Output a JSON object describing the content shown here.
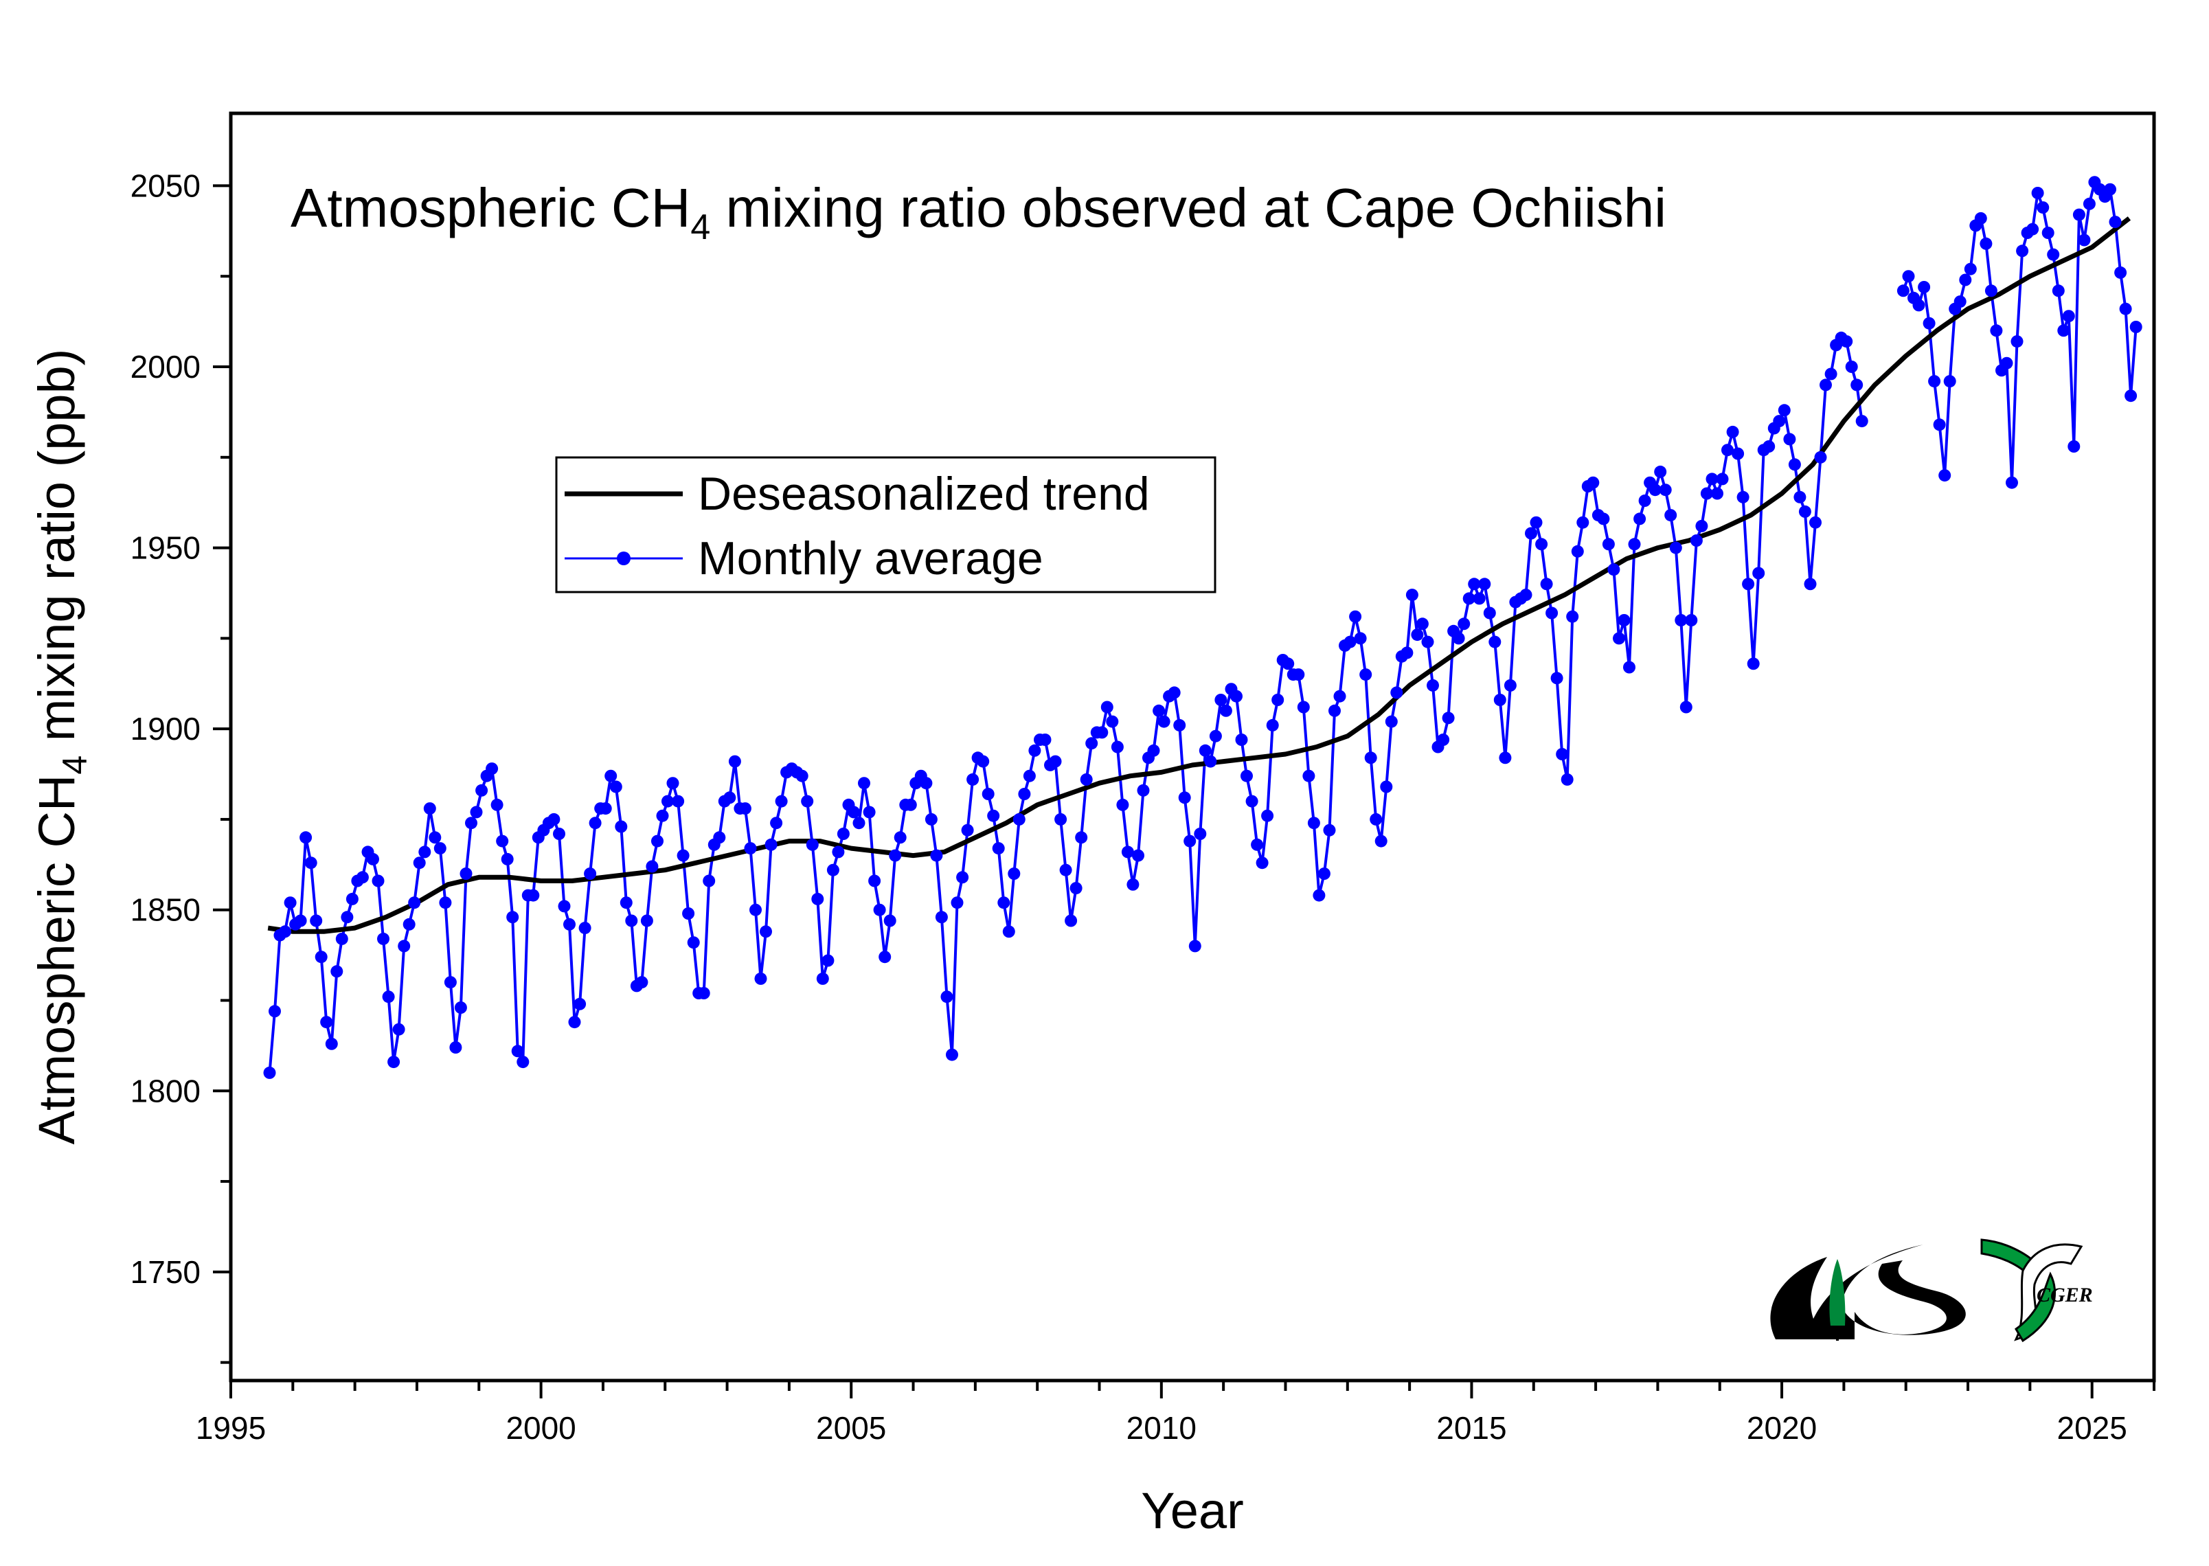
{
  "chart_data": {
    "type": "line",
    "title_parts": [
      "Atmospheric CH",
      "4",
      " mixing ratio observed at Cape Ochiishi"
    ],
    "xlabel": "Year",
    "ylabel_parts": [
      "Atmospheric CH",
      "4",
      " mixing ratio  (ppb)"
    ],
    "xlim": [
      1995,
      2026
    ],
    "ylim": [
      1720,
      2070
    ],
    "xticks": [
      1995,
      2000,
      2005,
      2010,
      2015,
      2020,
      2025
    ],
    "xticks_minor_step": 1,
    "yticks": [
      1750,
      1800,
      1850,
      1900,
      1950,
      2000,
      2050
    ],
    "yticks_minor_step": 25,
    "grid": false,
    "legend_placement": "upper-left-center",
    "colors": {
      "trend": "#000000",
      "monthly": "#0000ff"
    },
    "series": [
      {
        "name": "Deseasonalized trend",
        "style": "line",
        "points": [
          [
            1995.6,
            1845
          ],
          [
            1996.0,
            1844
          ],
          [
            1996.5,
            1844
          ],
          [
            1997.0,
            1845
          ],
          [
            1997.5,
            1848
          ],
          [
            1998.0,
            1852
          ],
          [
            1998.5,
            1857
          ],
          [
            1999.0,
            1859
          ],
          [
            1999.5,
            1859
          ],
          [
            2000.0,
            1858
          ],
          [
            2000.5,
            1858
          ],
          [
            2001.0,
            1859
          ],
          [
            2001.5,
            1860
          ],
          [
            2002.0,
            1861
          ],
          [
            2002.5,
            1863
          ],
          [
            2003.0,
            1865
          ],
          [
            2003.5,
            1867
          ],
          [
            2004.0,
            1869
          ],
          [
            2004.5,
            1869
          ],
          [
            2005.0,
            1867
          ],
          [
            2005.5,
            1866
          ],
          [
            2006.0,
            1865
          ],
          [
            2006.5,
            1866
          ],
          [
            2007.0,
            1870
          ],
          [
            2007.5,
            1874
          ],
          [
            2008.0,
            1879
          ],
          [
            2008.5,
            1882
          ],
          [
            2009.0,
            1885
          ],
          [
            2009.5,
            1887
          ],
          [
            2010.0,
            1888
          ],
          [
            2010.5,
            1890
          ],
          [
            2011.0,
            1891
          ],
          [
            2011.5,
            1892
          ],
          [
            2012.0,
            1893
          ],
          [
            2012.5,
            1895
          ],
          [
            2013.0,
            1898
          ],
          [
            2013.5,
            1904
          ],
          [
            2014.0,
            1912
          ],
          [
            2014.5,
            1918
          ],
          [
            2015.0,
            1924
          ],
          [
            2015.5,
            1929
          ],
          [
            2016.0,
            1933
          ],
          [
            2016.5,
            1937
          ],
          [
            2017.0,
            1942
          ],
          [
            2017.5,
            1947
          ],
          [
            2018.0,
            1950
          ],
          [
            2018.5,
            1952
          ],
          [
            2019.0,
            1955
          ],
          [
            2019.5,
            1959
          ],
          [
            2020.0,
            1965
          ],
          [
            2020.5,
            1973
          ],
          [
            2021.0,
            1985
          ],
          [
            2021.5,
            1995
          ],
          [
            2022.0,
            2003
          ],
          [
            2022.5,
            2010
          ],
          [
            2023.0,
            2016
          ],
          [
            2023.5,
            2020
          ],
          [
            2024.0,
            2025
          ],
          [
            2024.5,
            2029
          ],
          [
            2025.0,
            2033
          ],
          [
            2025.6,
            2041
          ]
        ]
      },
      {
        "name": "Monthly average",
        "style": "line+marker",
        "monthly": [
          {
            "year": 1995,
            "values": [
              null,
              null,
              null,
              null,
              null,
              null,
              null,
              1805,
              1822,
              1843,
              1844,
              1852
            ]
          },
          {
            "year": 1996,
            "values": [
              1846,
              1847,
              1870,
              1863,
              1847,
              1837,
              1819,
              1813,
              1833,
              1842,
              1848,
              1853
            ]
          },
          {
            "year": 1997,
            "values": [
              1858,
              1859,
              1866,
              1864,
              1858,
              1842,
              1826,
              1808,
              1817,
              1840,
              1846,
              1852
            ]
          },
          {
            "year": 1998,
            "values": [
              1863,
              1866,
              1878,
              1870,
              1867,
              1852,
              1830,
              1812,
              1823,
              1860,
              1874,
              1877
            ]
          },
          {
            "year": 1999,
            "values": [
              1883,
              1887,
              1889,
              1879,
              1869,
              1864,
              1848,
              1811,
              1808,
              1854,
              1854,
              1870
            ]
          },
          {
            "year": 2000,
            "values": [
              1872,
              1874,
              1875,
              1871,
              1851,
              1846,
              1819,
              1824,
              1845,
              1860,
              1874,
              1878
            ]
          },
          {
            "year": 2001,
            "values": [
              1878,
              1887,
              1884,
              1873,
              1852,
              1847,
              1829,
              1830,
              1847,
              1862,
              1869,
              1876
            ]
          },
          {
            "year": 2002,
            "values": [
              1880,
              1885,
              1880,
              1865,
              1849,
              1841,
              1827,
              1827,
              1858,
              1868,
              1870,
              1880
            ]
          },
          {
            "year": 2003,
            "values": [
              1881,
              1891,
              1878,
              1878,
              1867,
              1850,
              1831,
              1844,
              1868,
              1874,
              1880,
              1888
            ]
          },
          {
            "year": 2004,
            "values": [
              1889,
              1888,
              1887,
              1880,
              1868,
              1853,
              1831,
              1836,
              1861,
              1866,
              1871,
              1879
            ]
          },
          {
            "year": 2005,
            "values": [
              1877,
              1874,
              1885,
              1877,
              1858,
              1850,
              1837,
              1847,
              1865,
              1870,
              1879,
              1879
            ]
          },
          {
            "year": 2006,
            "values": [
              1885,
              1887,
              1885,
              1875,
              1865,
              1848,
              1826,
              1810,
              1852,
              1859,
              1872,
              1886
            ]
          },
          {
            "year": 2007,
            "values": [
              1892,
              1891,
              1882,
              1876,
              1867,
              1852,
              1844,
              1860,
              1875,
              1882,
              1887,
              1894
            ]
          },
          {
            "year": 2008,
            "values": [
              1897,
              1897,
              1890,
              1891,
              1875,
              1861,
              1847,
              1856,
              1870,
              1886,
              1896,
              1899
            ]
          },
          {
            "year": 2009,
            "values": [
              1899,
              1906,
              1902,
              1895,
              1879,
              1866,
              1857,
              1865,
              1883,
              1892,
              1894,
              1905
            ]
          },
          {
            "year": 2010,
            "values": [
              1902,
              1909,
              1910,
              1901,
              1881,
              1869,
              1840,
              1871,
              1894,
              1891,
              1898,
              1908
            ]
          },
          {
            "year": 2011,
            "values": [
              1905,
              1911,
              1909,
              1897,
              1887,
              1880,
              1868,
              1863,
              1876,
              1901,
              1908,
              1919
            ]
          },
          {
            "year": 2012,
            "values": [
              1918,
              1915,
              1915,
              1906,
              1887,
              1874,
              1854,
              1860,
              1872,
              1905,
              1909,
              1923
            ]
          },
          {
            "year": 2013,
            "values": [
              1924,
              1931,
              1925,
              1915,
              1892,
              1875,
              1869,
              1884,
              1902,
              1910,
              1920,
              1921
            ]
          },
          {
            "year": 2014,
            "values": [
              1937,
              1926,
              1929,
              1924,
              1912,
              1895,
              1897,
              1903,
              1927,
              1925,
              1929,
              1936
            ]
          },
          {
            "year": 2015,
            "values": [
              1940,
              1936,
              1940,
              1932,
              1924,
              1908,
              1892,
              1912,
              1935,
              1936,
              1937,
              1954
            ]
          },
          {
            "year": 2016,
            "values": [
              1957,
              1951,
              1940,
              1932,
              1914,
              1893,
              1886,
              1931,
              1949,
              1957,
              1967,
              1968
            ]
          },
          {
            "year": 2017,
            "values": [
              1959,
              1958,
              1951,
              1944,
              1925,
              1930,
              1917,
              1951,
              1958,
              1963,
              1968,
              1966
            ]
          },
          {
            "year": 2018,
            "values": [
              1971,
              1966,
              1959,
              1950,
              1930,
              1906,
              1930,
              1952,
              1956,
              1965,
              1969,
              1965
            ]
          },
          {
            "year": 2019,
            "values": [
              1969,
              1977,
              1982,
              1976,
              1964,
              1940,
              1918,
              1943,
              1977,
              1978,
              1983,
              1985
            ]
          },
          {
            "year": 2020,
            "values": [
              1988,
              1980,
              1973,
              1964,
              1960,
              1940,
              1957,
              1975,
              1995,
              1998,
              2006,
              2008
            ]
          },
          {
            "year": 2021,
            "values": [
              2007,
              2000,
              1995,
              1985,
              null,
              null,
              null,
              null,
              null,
              null,
              null,
              2021
            ]
          },
          {
            "year": 2022,
            "values": [
              2025,
              2019,
              2017,
              2022,
              2012,
              1996,
              1984,
              1970,
              1996,
              2016,
              2018,
              2024
            ]
          },
          {
            "year": 2023,
            "values": [
              2027,
              2039,
              2041,
              2034,
              2021,
              2010,
              1999,
              2001,
              1968,
              2007,
              2032,
              2037
            ]
          },
          {
            "year": 2024,
            "values": [
              2038,
              2048,
              2044,
              2037,
              2031,
              2021,
              2010,
              2014,
              1978,
              2042,
              2035,
              2045
            ]
          },
          {
            "year": 2025,
            "values": [
              2051,
              2049,
              2047,
              2049,
              2040,
              2026,
              2016,
              1992,
              2011,
              null,
              null,
              null
            ]
          }
        ]
      }
    ],
    "legend": [
      "Deseasonalized trend",
      "Monthly average"
    ],
    "logos": [
      "NIES",
      "CGER"
    ]
  }
}
